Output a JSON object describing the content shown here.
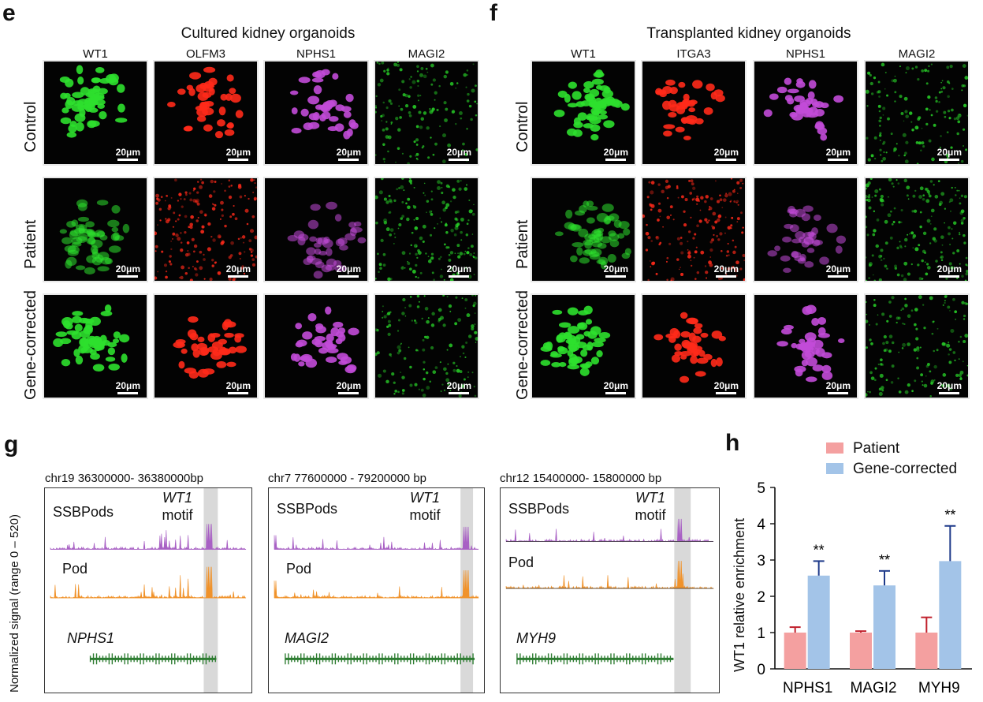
{
  "panels": {
    "e": "e",
    "f": "f",
    "g": "g",
    "h": "h"
  },
  "e": {
    "title": "Cultured kidney organoids",
    "columns": [
      "WT1",
      "OLFM3",
      "NPHS1",
      "MAGI2"
    ],
    "rows": [
      "Control",
      "Patient",
      "Gene-corrected"
    ],
    "colors": [
      "#2ee02e",
      "#ff2a1a",
      "#c24bd8",
      "#28d028"
    ]
  },
  "f": {
    "title": "Transplanted kidney organoids",
    "columns": [
      "WT1",
      "ITGA3",
      "NPHS1",
      "MAGI2"
    ],
    "rows": [
      "Control",
      "Patient",
      "Gene-corrected"
    ],
    "colors": [
      "#2ee02e",
      "#ff2a1a",
      "#c24bd8",
      "#28d028"
    ]
  },
  "scale_bar": "20μm",
  "g": {
    "ylabel": "Normalized signal (range 0 – 520)",
    "tracks": [
      {
        "coord": "chr19 36300000- 36380000bp",
        "gene": "NPHS1"
      },
      {
        "coord": "chr7 77600000 - 79200000 bp",
        "gene": "MAGI2"
      },
      {
        "coord": "chr12 15400000- 15800000 bp",
        "gene": "MYH9"
      }
    ],
    "sample1": "SSBPods",
    "sample2": "Pod",
    "motif_gene": "WT1",
    "motif_word": "motif",
    "colors": {
      "ssb": "#a860c4",
      "pod": "#f0922a",
      "gene": "#2e7d32"
    }
  },
  "chart_data": {
    "type": "bar",
    "categories": [
      "NPHS1",
      "MAGI2",
      "MYH9"
    ],
    "series": [
      {
        "name": "Patient",
        "values": [
          1.0,
          1.0,
          1.0
        ],
        "errors": [
          0.15,
          0.04,
          0.42
        ],
        "color": "#f4a0a0"
      },
      {
        "name": "Gene-corrected",
        "values": [
          2.57,
          2.3,
          2.97
        ],
        "errors": [
          0.4,
          0.4,
          0.97
        ],
        "color": "#a3c4e8"
      }
    ],
    "significance": [
      "**",
      "**",
      "**"
    ],
    "ylabel": "WT1 relative enrichment",
    "ylim": [
      0,
      5
    ],
    "yticks": [
      "0",
      "1",
      "2",
      "3",
      "4",
      "5"
    ],
    "legend": "top-right"
  }
}
